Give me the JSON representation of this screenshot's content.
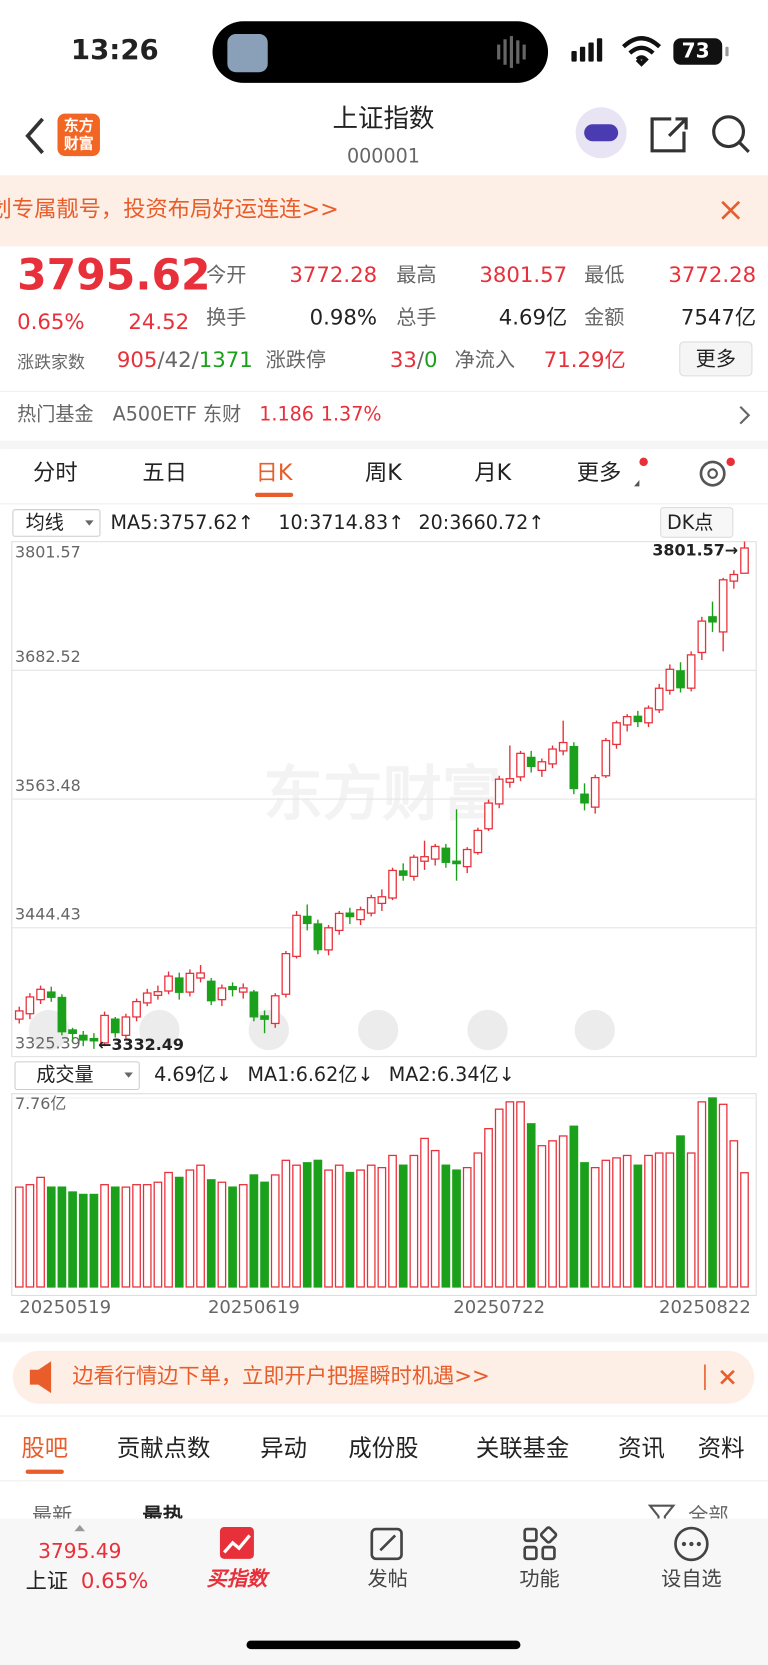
{
  "status_bar": {
    "time": "13:26",
    "battery": "73"
  },
  "header": {
    "title": "上证指数",
    "code": "000001",
    "logo": [
      "东方",
      "财富"
    ]
  },
  "banner": {
    "text": "划专属靓号，投资布局好运连连>>"
  },
  "quote": {
    "price": "3795.62",
    "change_pct": "0.65%",
    "change": "24.52",
    "fields": [
      {
        "label": "今开",
        "value": "3772.28"
      },
      {
        "label": "最高",
        "value": "3801.57"
      },
      {
        "label": "最低",
        "value": "3772.28"
      },
      {
        "label": "换手",
        "value": "0.98%"
      },
      {
        "label": "总手",
        "value": "4.69亿"
      },
      {
        "label": "金额",
        "value": "7547亿"
      }
    ],
    "breadth": {
      "label": "涨跌家数",
      "up": "905",
      "flat": "42",
      "down": "1371",
      "sep": "/"
    },
    "limit": {
      "label": "涨跌停",
      "up": "33",
      "down": "0",
      "sep": "/"
    },
    "inflow": {
      "label": "净流入",
      "value": "71.29亿"
    },
    "more": "更多"
  },
  "fund": {
    "label": "热门基金",
    "name": "A500ETF 东财",
    "price": "1.186",
    "pct": "1.37%"
  },
  "tabs": [
    "分时",
    "五日",
    "日K",
    "周K",
    "月K",
    "更多"
  ],
  "chart_data": [
    {
      "type": "candlestick",
      "indicator": "均线",
      "dk": "DK点",
      "watermark": "东方财富",
      "ma_labels": [
        {
          "text": "MA5:3757.62↑",
          "color": "#222222"
        },
        {
          "text": "10:3714.83↑",
          "color": "#f0a000"
        },
        {
          "text": "20:3660.72↑",
          "color": "#e0208a"
        }
      ],
      "up_color": "#e8303a",
      "down_color": "#1aa01a",
      "ylim": [
        3325.39,
        3801.57
      ],
      "yticks": [
        3801.57,
        3682.52,
        3563.48,
        3444.43,
        3325.39
      ],
      "grid": true,
      "annotations": [
        {
          "value": 3801.57,
          "label": "3801.57→",
          "field": "high"
        },
        {
          "value": 3332.49,
          "label": "←3332.49",
          "field": "low"
        }
      ],
      "open": [
        3360.0,
        3365.0,
        3378.0,
        3385.0,
        3380.0,
        3350.0,
        3345.0,
        3342.0,
        3338.0,
        3360.0,
        3345.0,
        3362.0,
        3375.0,
        3382.0,
        3386.0,
        3398.0,
        3385.0,
        3398.0,
        3395.0,
        3378.0,
        3390.0,
        3385.0,
        3385.0,
        3363.0,
        3356.0,
        3383.0,
        3418.0,
        3455.0,
        3448.0,
        3424.0,
        3442.0,
        3458.0,
        3452.0,
        3458.0,
        3467.0,
        3472.0,
        3497.0,
        3492.0,
        3506.0,
        3508.0,
        3518.0,
        3506.0,
        3501.0,
        3514.0,
        3536.0,
        3559.0,
        3579.0,
        3584.0,
        3602.0,
        3590.0,
        3596.0,
        3608.0,
        3612.0,
        3568.0,
        3556.0,
        3585.0,
        3614.0,
        3632.0,
        3640.0,
        3634.0,
        3646.0,
        3664.0,
        3682.0,
        3666.0,
        3699.0,
        3732.0,
        3718.0,
        3765.0,
        3772.28
      ],
      "high": [
        3371.5,
        3384.0,
        3391.0,
        3390.0,
        3383.0,
        3352.0,
        3349.0,
        3347.0,
        3367.0,
        3362.0,
        3365.0,
        3379.0,
        3388.0,
        3391.0,
        3404.0,
        3403.0,
        3406.0,
        3410.0,
        3398.0,
        3392.0,
        3394.0,
        3393.0,
        3387.0,
        3368.0,
        3384.0,
        3423.0,
        3460.0,
        3466.0,
        3452.0,
        3447.0,
        3460.0,
        3463.0,
        3464.0,
        3475.0,
        3480.0,
        3500.0,
        3504.0,
        3512.0,
        3525.0,
        3522.0,
        3522.0,
        3554.0,
        3519.0,
        3537.0,
        3563.0,
        3585.0,
        3613.0,
        3608.0,
        3608.0,
        3601.0,
        3613.0,
        3636.0,
        3616.0,
        3578.0,
        3586.0,
        3620.0,
        3636.0,
        3642.0,
        3645.0,
        3650.0,
        3670.0,
        3688.0,
        3690.0,
        3700.0,
        3732.0,
        3746.0,
        3768.0,
        3775.0,
        3801.57
      ],
      "low": [
        3356.0,
        3360.0,
        3374.0,
        3376.0,
        3345.0,
        3340.0,
        3335.0,
        3332.49,
        3335.0,
        3343.0,
        3342.0,
        3358.0,
        3372.0,
        3378.0,
        3383.0,
        3378.0,
        3381.0,
        3394.0,
        3373.0,
        3372.0,
        3381.0,
        3379.0,
        3358.0,
        3347.0,
        3352.0,
        3380.0,
        3416.0,
        3442.0,
        3420.0,
        3419.0,
        3438.0,
        3448.0,
        3447.0,
        3455.0,
        3460.0,
        3470.0,
        3488.0,
        3488.0,
        3498.0,
        3502.0,
        3500.0,
        3488.0,
        3495.0,
        3512.0,
        3534.0,
        3555.0,
        3574.0,
        3580.0,
        3588.0,
        3584.0,
        3592.0,
        3604.0,
        3568.0,
        3553.0,
        3550.0,
        3583.0,
        3610.0,
        3626.0,
        3630.0,
        3630.0,
        3643.0,
        3660.0,
        3662.0,
        3663.0,
        3692.0,
        3718.0,
        3700.0,
        3758.0,
        3772.28
      ],
      "close": [
        3367.58,
        3380.48,
        3387.57,
        3380.19,
        3348.37,
        3346.84,
        3340.69,
        3339.93,
        3363.45,
        3347.49,
        3361.98,
        3376.2,
        3384.1,
        3385.36,
        3399.77,
        3384.82,
        3402.32,
        3402.66,
        3377.0,
        3388.73,
        3387.4,
        3388.81,
        3362.11,
        3359.9,
        3381.58,
        3420.57,
        3455.97,
        3448.45,
        3424.23,
        3444.43,
        3457.75,
        3454.79,
        3461.15,
        3472.32,
        3473.13,
        3497.48,
        3493.05,
        3509.68,
        3510.18,
        3519.65,
        3505.0,
        3503.78,
        3516.83,
        3534.48,
        3559.79,
        3581.86,
        3582.3,
        3605.73,
        3593.66,
        3597.94,
        3609.71,
        3615.72,
        3573.21,
        3559.95,
        3583.31,
        3617.6,
        3633.99,
        3639.67,
        3635.13,
        3647.55,
        3665.92,
        3683.46,
        3666.44,
        3696.77,
        3728.03,
        3727.29,
        3766.21,
        3771.1,
        3795.62
      ]
    },
    {
      "type": "bar",
      "indicator": "成交量",
      "ma_labels": [
        {
          "text": "4.69亿↓",
          "color": "#222222"
        },
        {
          "text": "MA1:6.62亿↓",
          "color": "#f0a000"
        },
        {
          "text": "MA2:6.34亿↓",
          "color": "#e0208a"
        }
      ],
      "ylim": [
        0,
        7.76
      ],
      "yticks": [
        {
          "value": 7.76,
          "label": "7.76亿"
        }
      ],
      "categories": [
        "20250519",
        null,
        null,
        null,
        null,
        null,
        null,
        null,
        null,
        null,
        null,
        null,
        null,
        null,
        null,
        null,
        null,
        null,
        null,
        null,
        null,
        null,
        "20250619",
        null,
        null,
        null,
        null,
        null,
        null,
        null,
        null,
        null,
        null,
        null,
        null,
        null,
        null,
        null,
        null,
        null,
        null,
        null,
        null,
        null,
        null,
        "20250722",
        null,
        null,
        null,
        null,
        null,
        null,
        null,
        null,
        null,
        null,
        null,
        null,
        null,
        null,
        null,
        null,
        null,
        null,
        null,
        null,
        null,
        null,
        "20250822"
      ],
      "values": [
        4.1,
        4.2,
        4.5,
        4.1,
        4.1,
        3.9,
        3.8,
        3.8,
        4.2,
        4.1,
        4.1,
        4.2,
        4.2,
        4.3,
        4.7,
        4.5,
        4.8,
        5.0,
        4.4,
        4.3,
        4.1,
        4.2,
        4.6,
        4.3,
        4.6,
        5.2,
        5.0,
        5.1,
        5.2,
        4.8,
        5.0,
        4.7,
        4.8,
        5.0,
        4.9,
        5.4,
        5.0,
        5.4,
        6.1,
        5.6,
        5.0,
        4.8,
        4.9,
        5.5,
        6.5,
        7.3,
        7.6,
        7.6,
        6.7,
        5.8,
        6.0,
        6.2,
        6.6,
        5.1,
        4.9,
        5.2,
        5.3,
        5.4,
        5.0,
        5.4,
        5.5,
        5.5,
        6.2,
        5.5,
        7.6,
        7.76,
        7.5,
        6.0,
        4.69
      ]
    }
  ],
  "ad": {
    "text": "边看行情边下单，立即开户把握瞬时机遇>>"
  },
  "sub_tabs": [
    "股吧",
    "贡献点数",
    "异动",
    "成份股",
    "关联基金",
    "资讯",
    "资料"
  ],
  "filters": [
    "最新",
    "最热",
    "全部"
  ],
  "nav": {
    "price": "3795.49",
    "name": "上证",
    "pct": "0.65%",
    "items": [
      "买指数",
      "发帖",
      "功能",
      "设自选"
    ]
  }
}
